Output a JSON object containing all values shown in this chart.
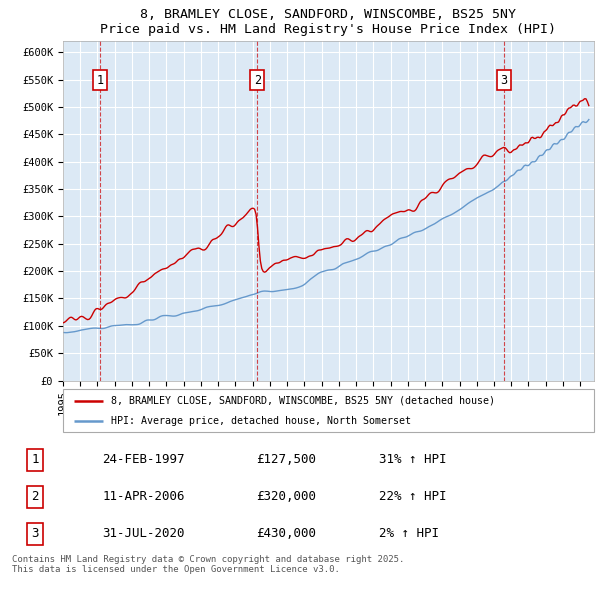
{
  "title": "8, BRAMLEY CLOSE, SANDFORD, WINSCOMBE, BS25 5NY",
  "subtitle": "Price paid vs. HM Land Registry's House Price Index (HPI)",
  "plot_bg_color": "#dce9f5",
  "ylim": [
    0,
    620000
  ],
  "yticks": [
    0,
    50000,
    100000,
    150000,
    200000,
    250000,
    300000,
    350000,
    400000,
    450000,
    500000,
    550000,
    600000
  ],
  "ytick_labels": [
    "£0",
    "£50K",
    "£100K",
    "£150K",
    "£200K",
    "£250K",
    "£300K",
    "£350K",
    "£400K",
    "£450K",
    "£500K",
    "£550K",
    "£600K"
  ],
  "x_start_year": 1995,
  "x_end_year": 2025,
  "red_line_color": "#cc0000",
  "blue_line_color": "#6699cc",
  "grid_color": "#ffffff",
  "dashed_line_color": "#cc0000",
  "sale_points": [
    {
      "year": 1997.14,
      "price": 127500,
      "label": "1"
    },
    {
      "year": 2006.27,
      "price": 320000,
      "label": "2"
    },
    {
      "year": 2020.58,
      "price": 430000,
      "label": "3"
    }
  ],
  "legend_entries": [
    {
      "color": "#cc0000",
      "label": "8, BRAMLEY CLOSE, SANDFORD, WINSCOMBE, BS25 5NY (detached house)"
    },
    {
      "color": "#6699cc",
      "label": "HPI: Average price, detached house, North Somerset"
    }
  ],
  "table_rows": [
    {
      "num": "1",
      "date": "24-FEB-1997",
      "price": "£127,500",
      "change": "31% ↑ HPI"
    },
    {
      "num": "2",
      "date": "11-APR-2006",
      "price": "£320,000",
      "change": "22% ↑ HPI"
    },
    {
      "num": "3",
      "date": "31-JUL-2020",
      "price": "£430,000",
      "change": "2% ↑ HPI"
    }
  ],
  "footnote": "Contains HM Land Registry data © Crown copyright and database right 2025.\nThis data is licensed under the Open Government Licence v3.0."
}
